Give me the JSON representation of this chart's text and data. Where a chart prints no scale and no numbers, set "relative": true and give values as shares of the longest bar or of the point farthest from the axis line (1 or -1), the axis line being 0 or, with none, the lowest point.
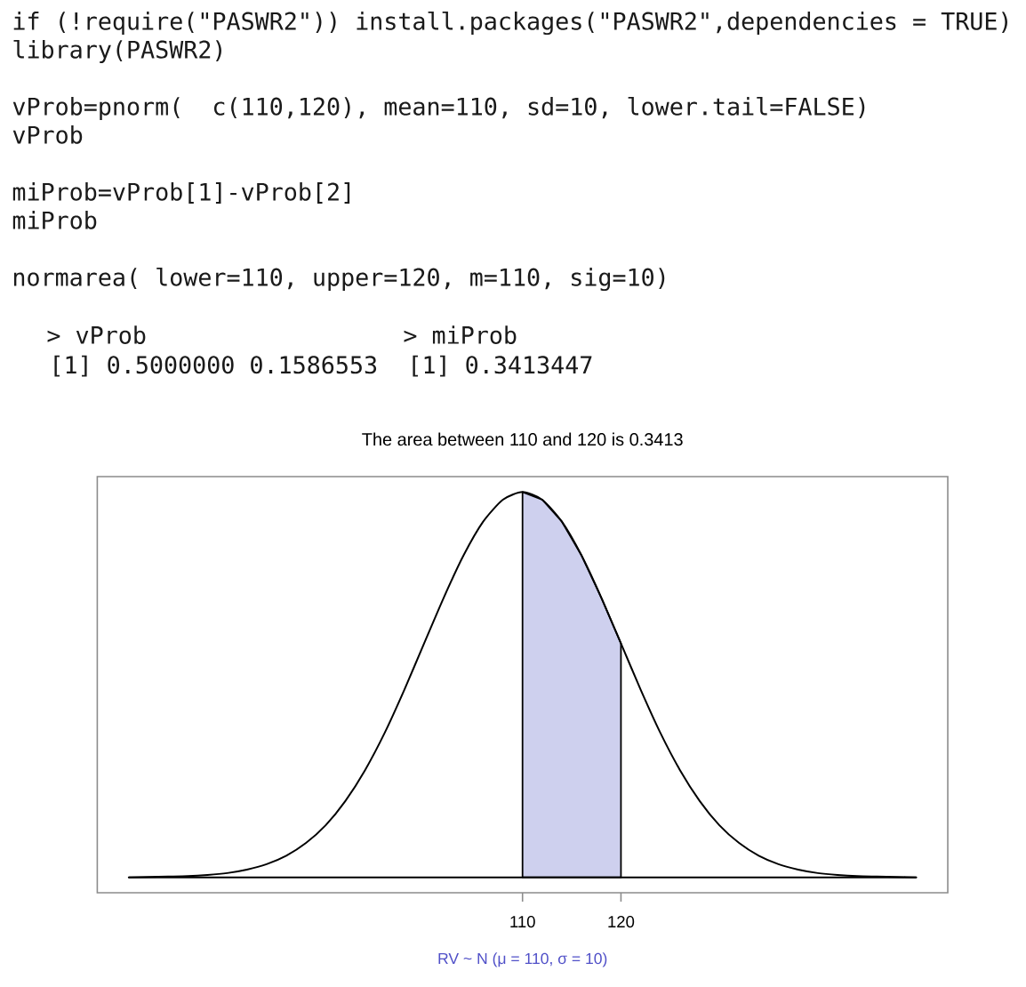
{
  "chart_data": {
    "type": "line",
    "title": "The area between 110 and 120 is 0.3413",
    "xlabel": "RV ~ N (μ = 110, σ = 10)",
    "annotations": [
      "if (!require(\"PASWR2\")) install.packages(\"PASWR2\",dependencies = TRUE)",
      "library(PASWR2)",
      "vProb=pnorm(  c(110,120), mean=110, sd=10, lower.tail=FALSE)",
      "vProb",
      "miProb=vProb[1]-vProb[2]",
      "miProb",
      "normarea( lower=110, upper=120, m=110, sig=10)",
      "> vProb",
      "[1] 0.5000000 0.1586553",
      "> miProb",
      "[1] 0.3413447"
    ],
    "relative": true,
    "xlim": [
      66.8,
      153.2
    ],
    "xticks": [
      110,
      120
    ],
    "series": [
      {
        "type": "area",
        "color": "#ced0ee",
        "x": [
          110,
          112,
          114,
          116,
          118,
          120
        ],
        "values": [
          1,
          0.98,
          0.923,
          0.835,
          0.726,
          0.607
        ]
      },
      {
        "color": "#000000",
        "x": [
          70,
          72,
          74,
          76,
          78,
          80,
          82,
          84,
          86,
          88,
          90,
          92,
          94,
          96,
          98,
          100,
          102,
          104,
          106,
          108,
          110,
          112,
          114,
          116,
          118,
          120,
          122,
          124,
          126,
          128,
          130,
          132,
          134,
          136,
          138,
          140,
          142,
          144,
          146,
          148,
          150
        ],
        "values": [
          0,
          0.001,
          0.002,
          0.003,
          0.006,
          0.011,
          0.02,
          0.034,
          0.056,
          0.089,
          0.135,
          0.198,
          0.278,
          0.375,
          0.487,
          0.607,
          0.726,
          0.835,
          0.923,
          0.98,
          1,
          0.98,
          0.923,
          0.835,
          0.726,
          0.607,
          0.487,
          0.375,
          0.278,
          0.198,
          0.135,
          0.089,
          0.056,
          0.034,
          0.02,
          0.011,
          0.006,
          0.003,
          0.002,
          0.001,
          0
        ]
      }
    ]
  }
}
